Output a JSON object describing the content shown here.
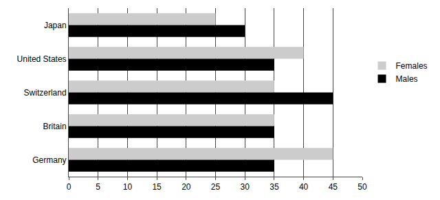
{
  "chart_data": {
    "type": "bar",
    "orientation": "horizontal",
    "categories": [
      "Japan",
      "United States",
      "Switzerland",
      "Britain",
      "Germany"
    ],
    "series": [
      {
        "name": "Females",
        "color": "#cccccc",
        "values": [
          25,
          40,
          35,
          35,
          45
        ]
      },
      {
        "name": "Males",
        "color": "#000000",
        "values": [
          30,
          35,
          45,
          35,
          35
        ]
      }
    ],
    "xlim": [
      0,
      50
    ],
    "xticks": [
      0,
      5,
      10,
      15,
      20,
      25,
      30,
      35,
      40,
      45,
      50
    ],
    "grid": true,
    "legend": "right"
  }
}
